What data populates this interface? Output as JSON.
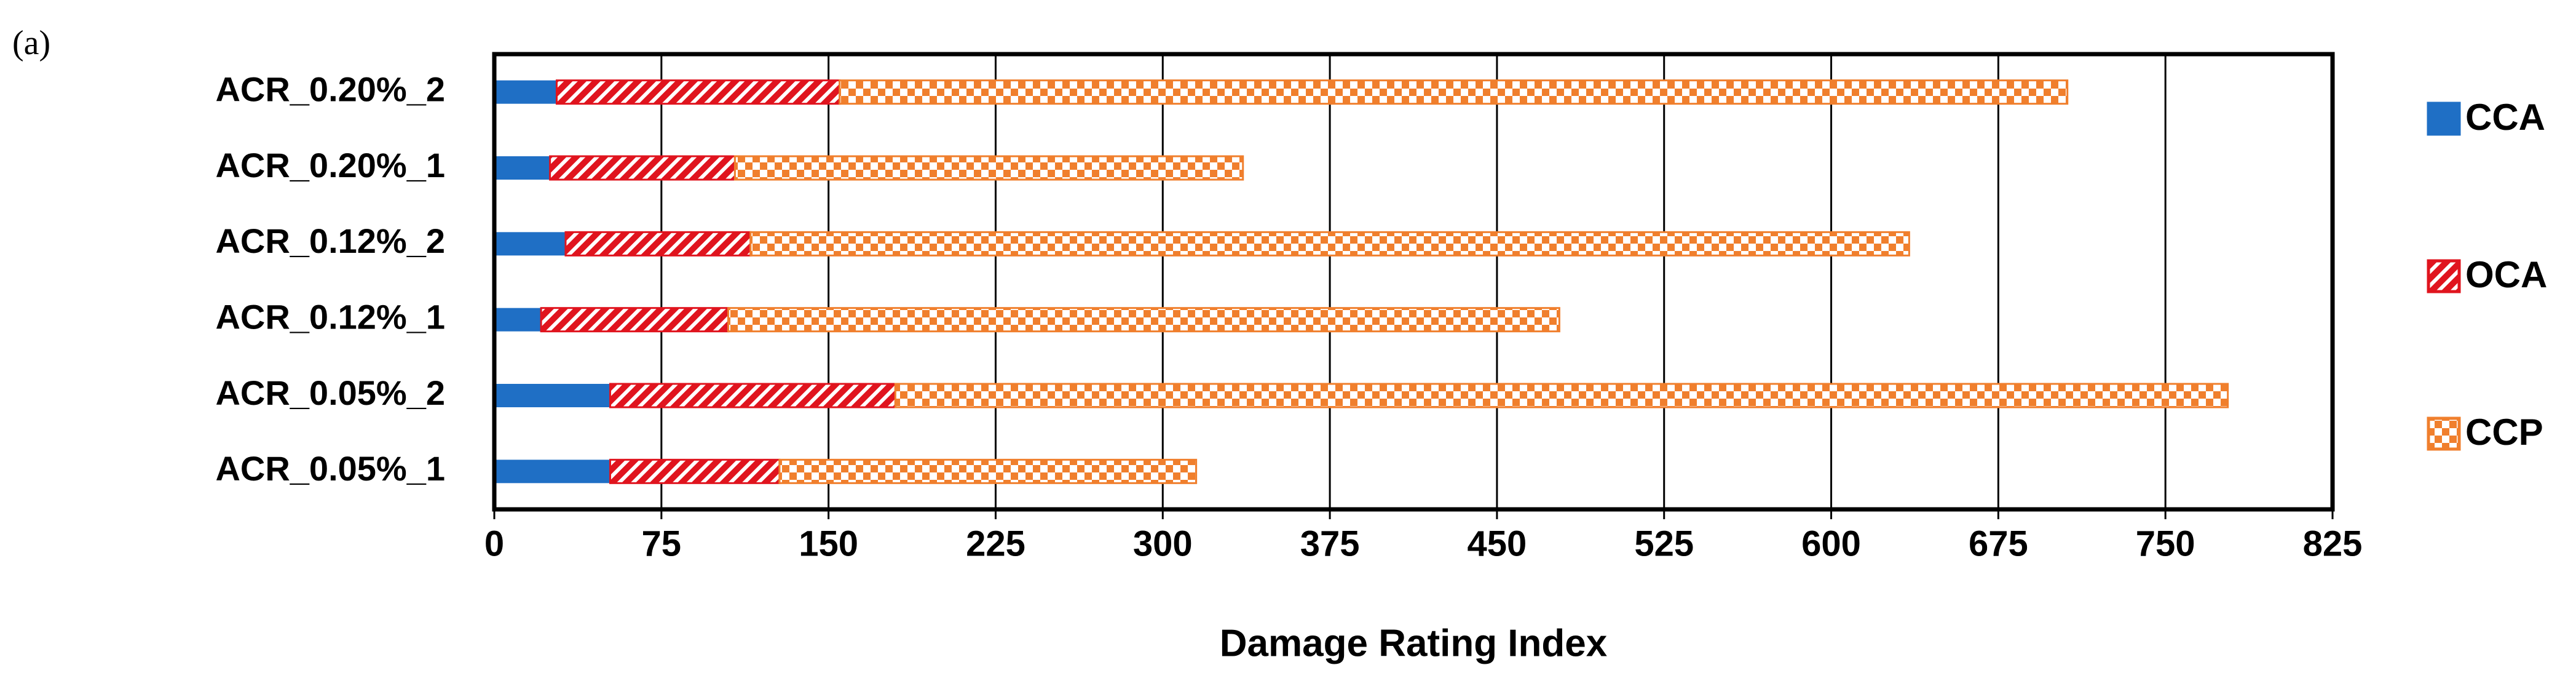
{
  "chart_data": {
    "type": "stacked_barh",
    "label": "(a)",
    "x_label": "Damage Rating Index",
    "categories": [
      "ACR_0.20%_2",
      "ACR_0.20%_1",
      "ACR_0.12%_2",
      "ACR_0.12%_1",
      "ACR_0.05%_2",
      "ACR_0.05%_1"
    ],
    "series": [
      {
        "name": "CCA",
        "color": "#1f6fc5",
        "pattern": "solid",
        "values": [
          28,
          25,
          32,
          21,
          52,
          52
        ]
      },
      {
        "name": "OCA",
        "color": "#e0141e",
        "pattern": "hatch",
        "values": [
          127,
          83,
          83,
          84,
          128,
          76
        ]
      },
      {
        "name": "CCP",
        "color": "#f07f2d",
        "pattern": "checker",
        "values": [
          551,
          228,
          520,
          373,
          598,
          187
        ]
      }
    ],
    "xlim": [
      0,
      825
    ],
    "xticks": [
      0,
      75,
      150,
      225,
      300,
      375,
      450,
      525,
      600,
      675,
      750,
      825
    ],
    "grid": true,
    "legend": "right"
  }
}
